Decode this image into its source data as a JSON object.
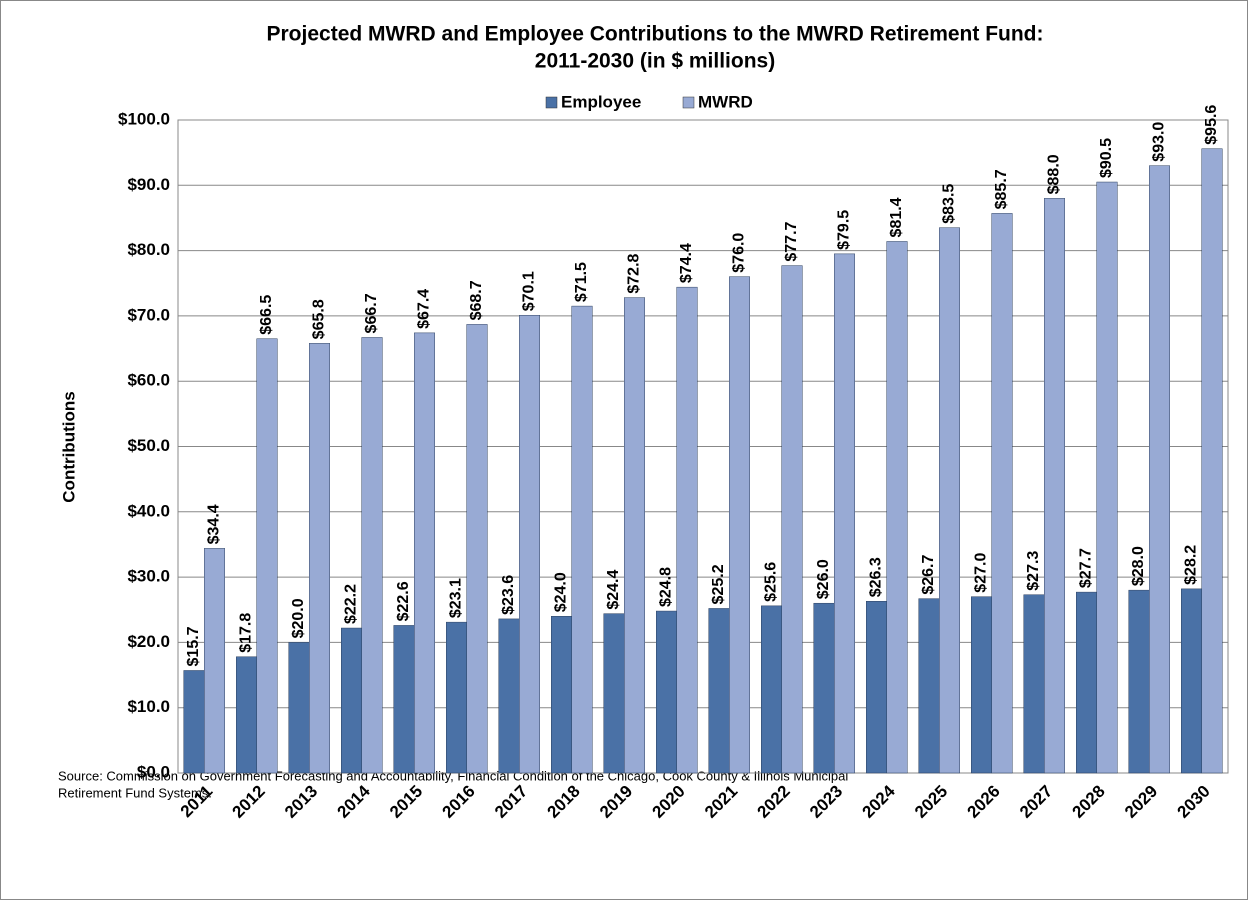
{
  "chart_data": {
    "type": "bar",
    "title": [
      "Projected MWRD and Employee Contributions to the MWRD Retirement Fund:",
      "2011-2030 (in $ millions)"
    ],
    "y_label": "Contributions",
    "notes": [
      "Source: Commission on Government Forecasting and Accountability, Financial Condition of the Chicago, Cook County & Illinois Municipal",
      "Retirement Fund Systems."
    ],
    "legend": "top",
    "grid": true,
    "categories": [
      "2011",
      "2012",
      "2013",
      "2014",
      "2015",
      "2016",
      "2017",
      "2018",
      "2019",
      "2020",
      "2021",
      "2022",
      "2023",
      "2024",
      "2025",
      "2026",
      "2027",
      "2028",
      "2029",
      "2030"
    ],
    "series": [
      {
        "name": "Employee",
        "color": "#4a71a6",
        "values": [
          15.7,
          17.8,
          20.0,
          22.2,
          22.6,
          23.1,
          23.6,
          24.0,
          24.4,
          24.8,
          25.2,
          25.6,
          26.0,
          26.3,
          26.7,
          27.0,
          27.3,
          27.7,
          28.0,
          28.2
        ],
        "value_labels": [
          "$15.7",
          "$17.8",
          "$20.0",
          "$22.2",
          "$22.6",
          "$23.1",
          "$23.6",
          "$24.0",
          "$24.4",
          "$24.8",
          "$25.2",
          "$25.6",
          "$26.0",
          "$26.3",
          "$26.7",
          "$27.0",
          "$27.3",
          "$27.7",
          "$28.0",
          "$28.2"
        ]
      },
      {
        "name": "MWRD",
        "color": "#98aad4",
        "values": [
          34.4,
          66.5,
          65.8,
          66.7,
          67.4,
          68.7,
          70.1,
          71.5,
          72.8,
          74.4,
          76.0,
          77.7,
          79.5,
          81.4,
          83.5,
          85.7,
          88.0,
          90.5,
          93.0,
          95.6
        ],
        "value_labels": [
          "$34.4",
          "$66.5",
          "$65.8",
          "$66.7",
          "$67.4",
          "$68.7",
          "$70.1",
          "$71.5",
          "$72.8",
          "$74.4",
          "$76.0",
          "$77.7",
          "$79.5",
          "$81.4",
          "$83.5",
          "$85.7",
          "$88.0",
          "$90.5",
          "$93.0",
          "$95.6"
        ]
      }
    ],
    "ylim": [
      0,
      100
    ],
    "yticks": [
      {
        "value": 0,
        "label": "$0.0"
      },
      {
        "value": 10,
        "label": "$10.0"
      },
      {
        "value": 20,
        "label": "$20.0"
      },
      {
        "value": 30,
        "label": "$30.0"
      },
      {
        "value": 40,
        "label": "$40.0"
      },
      {
        "value": 50,
        "label": "$50.0"
      },
      {
        "value": 60,
        "label": "$60.0"
      },
      {
        "value": 70,
        "label": "$70.0"
      },
      {
        "value": 80,
        "label": "$80.0"
      },
      {
        "value": 90,
        "label": "$90.0"
      },
      {
        "value": 100,
        "label": "$100.0"
      }
    ]
  }
}
